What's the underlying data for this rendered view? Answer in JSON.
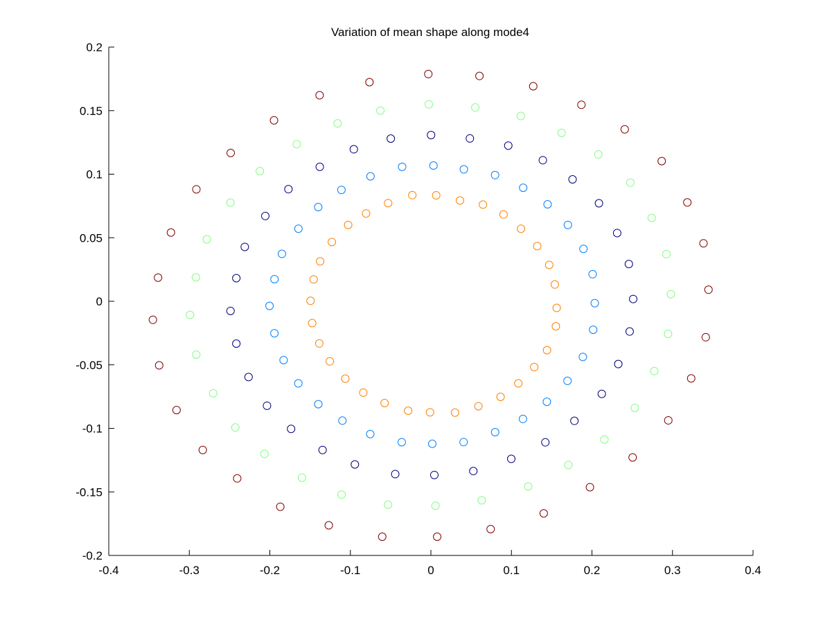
{
  "chart_data": {
    "type": "scatter",
    "title": "Variation of mean shape along mode4",
    "xlabel": "",
    "ylabel": "",
    "xlim": [
      -0.4,
      0.4
    ],
    "ylim": [
      -0.2,
      0.2
    ],
    "xticks": [
      -0.4,
      -0.3,
      -0.2,
      -0.1,
      0,
      0.1,
      0.2,
      0.3,
      0.4
    ],
    "xtick_labels": [
      "-0.4",
      "-0.3",
      "-0.2",
      "-0.1",
      "0",
      "0.1",
      "0.2",
      "0.3",
      "0.4"
    ],
    "yticks": [
      -0.2,
      -0.15,
      -0.1,
      -0.05,
      0,
      0.05,
      0.1,
      0.15,
      0.2
    ],
    "ytick_labels": [
      "-0.2",
      "-0.15",
      "-0.1",
      "-0.05",
      "0",
      "0.05",
      "0.1",
      "0.15",
      "0.2"
    ],
    "grid": false,
    "marker": "open-circle",
    "series": [
      {
        "color": "#800000",
        "points": [
          [
            -0.3452,
            -0.0146
          ],
          [
            -0.3388,
            0.0186
          ],
          [
            -0.3228,
            0.0541
          ],
          [
            -0.2912,
            0.0881
          ],
          [
            -0.2486,
            0.1167
          ],
          [
            -0.1948,
            0.1424
          ],
          [
            -0.1382,
            0.1621
          ],
          [
            -0.0763,
            0.1724
          ],
          [
            -0.0032,
            0.1788
          ],
          [
            0.0603,
            0.1773
          ],
          [
            0.1271,
            0.1692
          ],
          [
            0.1869,
            0.1546
          ],
          [
            0.2407,
            0.1353
          ],
          [
            0.2866,
            0.1103
          ],
          [
            0.3184,
            0.0778
          ],
          [
            0.3385,
            0.0456
          ],
          [
            0.3447,
            0.0091
          ],
          [
            0.3413,
            -0.0283
          ],
          [
            0.3232,
            -0.0607
          ],
          [
            0.2948,
            -0.0937
          ],
          [
            0.2505,
            -0.1229
          ],
          [
            0.1975,
            -0.1463
          ],
          [
            0.1401,
            -0.1669
          ],
          [
            0.0742,
            -0.1793
          ],
          [
            0.0078,
            -0.1853
          ],
          [
            -0.0604,
            -0.1853
          ],
          [
            -0.1268,
            -0.1763
          ],
          [
            -0.187,
            -0.1617
          ],
          [
            -0.2405,
            -0.1394
          ],
          [
            -0.2833,
            -0.117
          ],
          [
            -0.3158,
            -0.0856
          ],
          [
            -0.3374,
            -0.0504
          ]
        ]
      },
      {
        "color": "#80ff80",
        "points": [
          [
            -0.2991,
            -0.0107
          ],
          [
            -0.2918,
            0.0188
          ],
          [
            -0.2782,
            0.0487
          ],
          [
            -0.2489,
            0.0776
          ],
          [
            -0.2124,
            0.1024
          ],
          [
            -0.1666,
            0.1236
          ],
          [
            -0.1159,
            0.14
          ],
          [
            -0.0627,
            0.15
          ],
          [
            -0.0026,
            0.155
          ],
          [
            0.0551,
            0.1525
          ],
          [
            0.1116,
            0.1458
          ],
          [
            0.1623,
            0.1325
          ],
          [
            0.2079,
            0.1155
          ],
          [
            0.2477,
            0.0933
          ],
          [
            0.2742,
            0.0656
          ],
          [
            0.2925,
            0.0371
          ],
          [
            0.298,
            0.0056
          ],
          [
            0.2945,
            -0.0257
          ],
          [
            0.2774,
            -0.0549
          ],
          [
            0.2532,
            -0.0839
          ],
          [
            0.2155,
            -0.1088
          ],
          [
            0.1707,
            -0.1288
          ],
          [
            0.1208,
            -0.1457
          ],
          [
            0.0631,
            -0.1566
          ],
          [
            0.0057,
            -0.1609
          ],
          [
            -0.0532,
            -0.16
          ],
          [
            -0.1109,
            -0.1522
          ],
          [
            -0.1601,
            -0.1388
          ],
          [
            -0.2066,
            -0.1201
          ],
          [
            -0.2428,
            -0.0993
          ],
          [
            -0.2703,
            -0.0724
          ],
          [
            -0.2913,
            -0.042
          ]
        ]
      },
      {
        "color": "#000080",
        "points": [
          [
            -0.2488,
            -0.0076
          ],
          [
            -0.2416,
            0.0182
          ],
          [
            -0.2311,
            0.0428
          ],
          [
            -0.2056,
            0.0671
          ],
          [
            -0.1769,
            0.0882
          ],
          [
            -0.138,
            0.1058
          ],
          [
            -0.0957,
            0.1196
          ],
          [
            -0.0498,
            0.128
          ],
          [
            0.0002,
            0.1308
          ],
          [
            0.0484,
            0.1281
          ],
          [
            0.0961,
            0.1225
          ],
          [
            0.139,
            0.111
          ],
          [
            0.1759,
            0.0959
          ],
          [
            0.2087,
            0.0771
          ],
          [
            0.2313,
            0.0537
          ],
          [
            0.2458,
            0.0293
          ],
          [
            0.2512,
            0.0018
          ],
          [
            0.2468,
            -0.0238
          ],
          [
            0.2327,
            -0.0494
          ],
          [
            0.2122,
            -0.0729
          ],
          [
            0.1782,
            -0.0941
          ],
          [
            0.1421,
            -0.111
          ],
          [
            0.0998,
            -0.124
          ],
          [
            0.0527,
            -0.1336
          ],
          [
            0.0043,
            -0.1367
          ],
          [
            -0.0443,
            -0.136
          ],
          [
            -0.0944,
            -0.1284
          ],
          [
            -0.1345,
            -0.117
          ],
          [
            -0.1736,
            -0.1004
          ],
          [
            -0.2035,
            -0.0822
          ],
          [
            -0.2264,
            -0.0596
          ],
          [
            -0.2416,
            -0.0333
          ]
        ]
      },
      {
        "color": "#0080ff",
        "points": [
          [
            -0.2004,
            -0.0036
          ],
          [
            -0.1942,
            0.0174
          ],
          [
            -0.185,
            0.0373
          ],
          [
            -0.1645,
            0.0571
          ],
          [
            -0.1399,
            0.0741
          ],
          [
            -0.1111,
            0.0876
          ],
          [
            -0.075,
            0.0983
          ],
          [
            -0.0357,
            0.1058
          ],
          [
            0.0032,
            0.1068
          ],
          [
            0.0409,
            0.1038
          ],
          [
            0.0797,
            0.0993
          ],
          [
            0.1146,
            0.0893
          ],
          [
            0.1449,
            0.0763
          ],
          [
            0.1701,
            0.0601
          ],
          [
            0.1894,
            0.0412
          ],
          [
            0.2008,
            0.0213
          ],
          [
            0.2035,
            -0.0015
          ],
          [
            0.2015,
            -0.0224
          ],
          [
            0.1887,
            -0.0438
          ],
          [
            0.1696,
            -0.0626
          ],
          [
            0.144,
            -0.0791
          ],
          [
            0.1143,
            -0.0926
          ],
          [
            0.0798,
            -0.103
          ],
          [
            0.0406,
            -0.1108
          ],
          [
            0.0017,
            -0.1121
          ],
          [
            -0.0362,
            -0.1109
          ],
          [
            -0.0753,
            -0.1045
          ],
          [
            -0.1099,
            -0.0939
          ],
          [
            -0.1398,
            -0.081
          ],
          [
            -0.1646,
            -0.0646
          ],
          [
            -0.1829,
            -0.0463
          ],
          [
            -0.1943,
            -0.0252
          ]
        ]
      },
      {
        "color": "#ff8000",
        "points": [
          [
            -0.1495,
            0.0004
          ],
          [
            -0.1455,
            0.0172
          ],
          [
            -0.1376,
            0.0314
          ],
          [
            -0.123,
            0.0466
          ],
          [
            -0.1027,
            0.0601
          ],
          [
            -0.0805,
            0.0691
          ],
          [
            -0.0531,
            0.0772
          ],
          [
            -0.0231,
            0.0835
          ],
          [
            0.0066,
            0.0834
          ],
          [
            0.0361,
            0.0793
          ],
          [
            0.0646,
            0.0761
          ],
          [
            0.0902,
            0.0683
          ],
          [
            0.1119,
            0.0571
          ],
          [
            0.1321,
            0.0434
          ],
          [
            0.1469,
            0.0286
          ],
          [
            0.1539,
            0.0132
          ],
          [
            0.1562,
            -0.0052
          ],
          [
            0.1552,
            -0.0197
          ],
          [
            0.1442,
            -0.0385
          ],
          [
            0.1283,
            -0.0518
          ],
          [
            0.1085,
            -0.0646
          ],
          [
            0.0865,
            -0.0752
          ],
          [
            0.059,
            -0.0826
          ],
          [
            0.0299,
            -0.0876
          ],
          [
            -0.001,
            -0.0874
          ],
          [
            -0.0282,
            -0.0861
          ],
          [
            -0.0575,
            -0.0801
          ],
          [
            -0.084,
            -0.0719
          ],
          [
            -0.1063,
            -0.0609
          ],
          [
            -0.1255,
            -0.0473
          ],
          [
            -0.1386,
            -0.0332
          ],
          [
            -0.1474,
            -0.0172
          ]
        ]
      }
    ]
  }
}
